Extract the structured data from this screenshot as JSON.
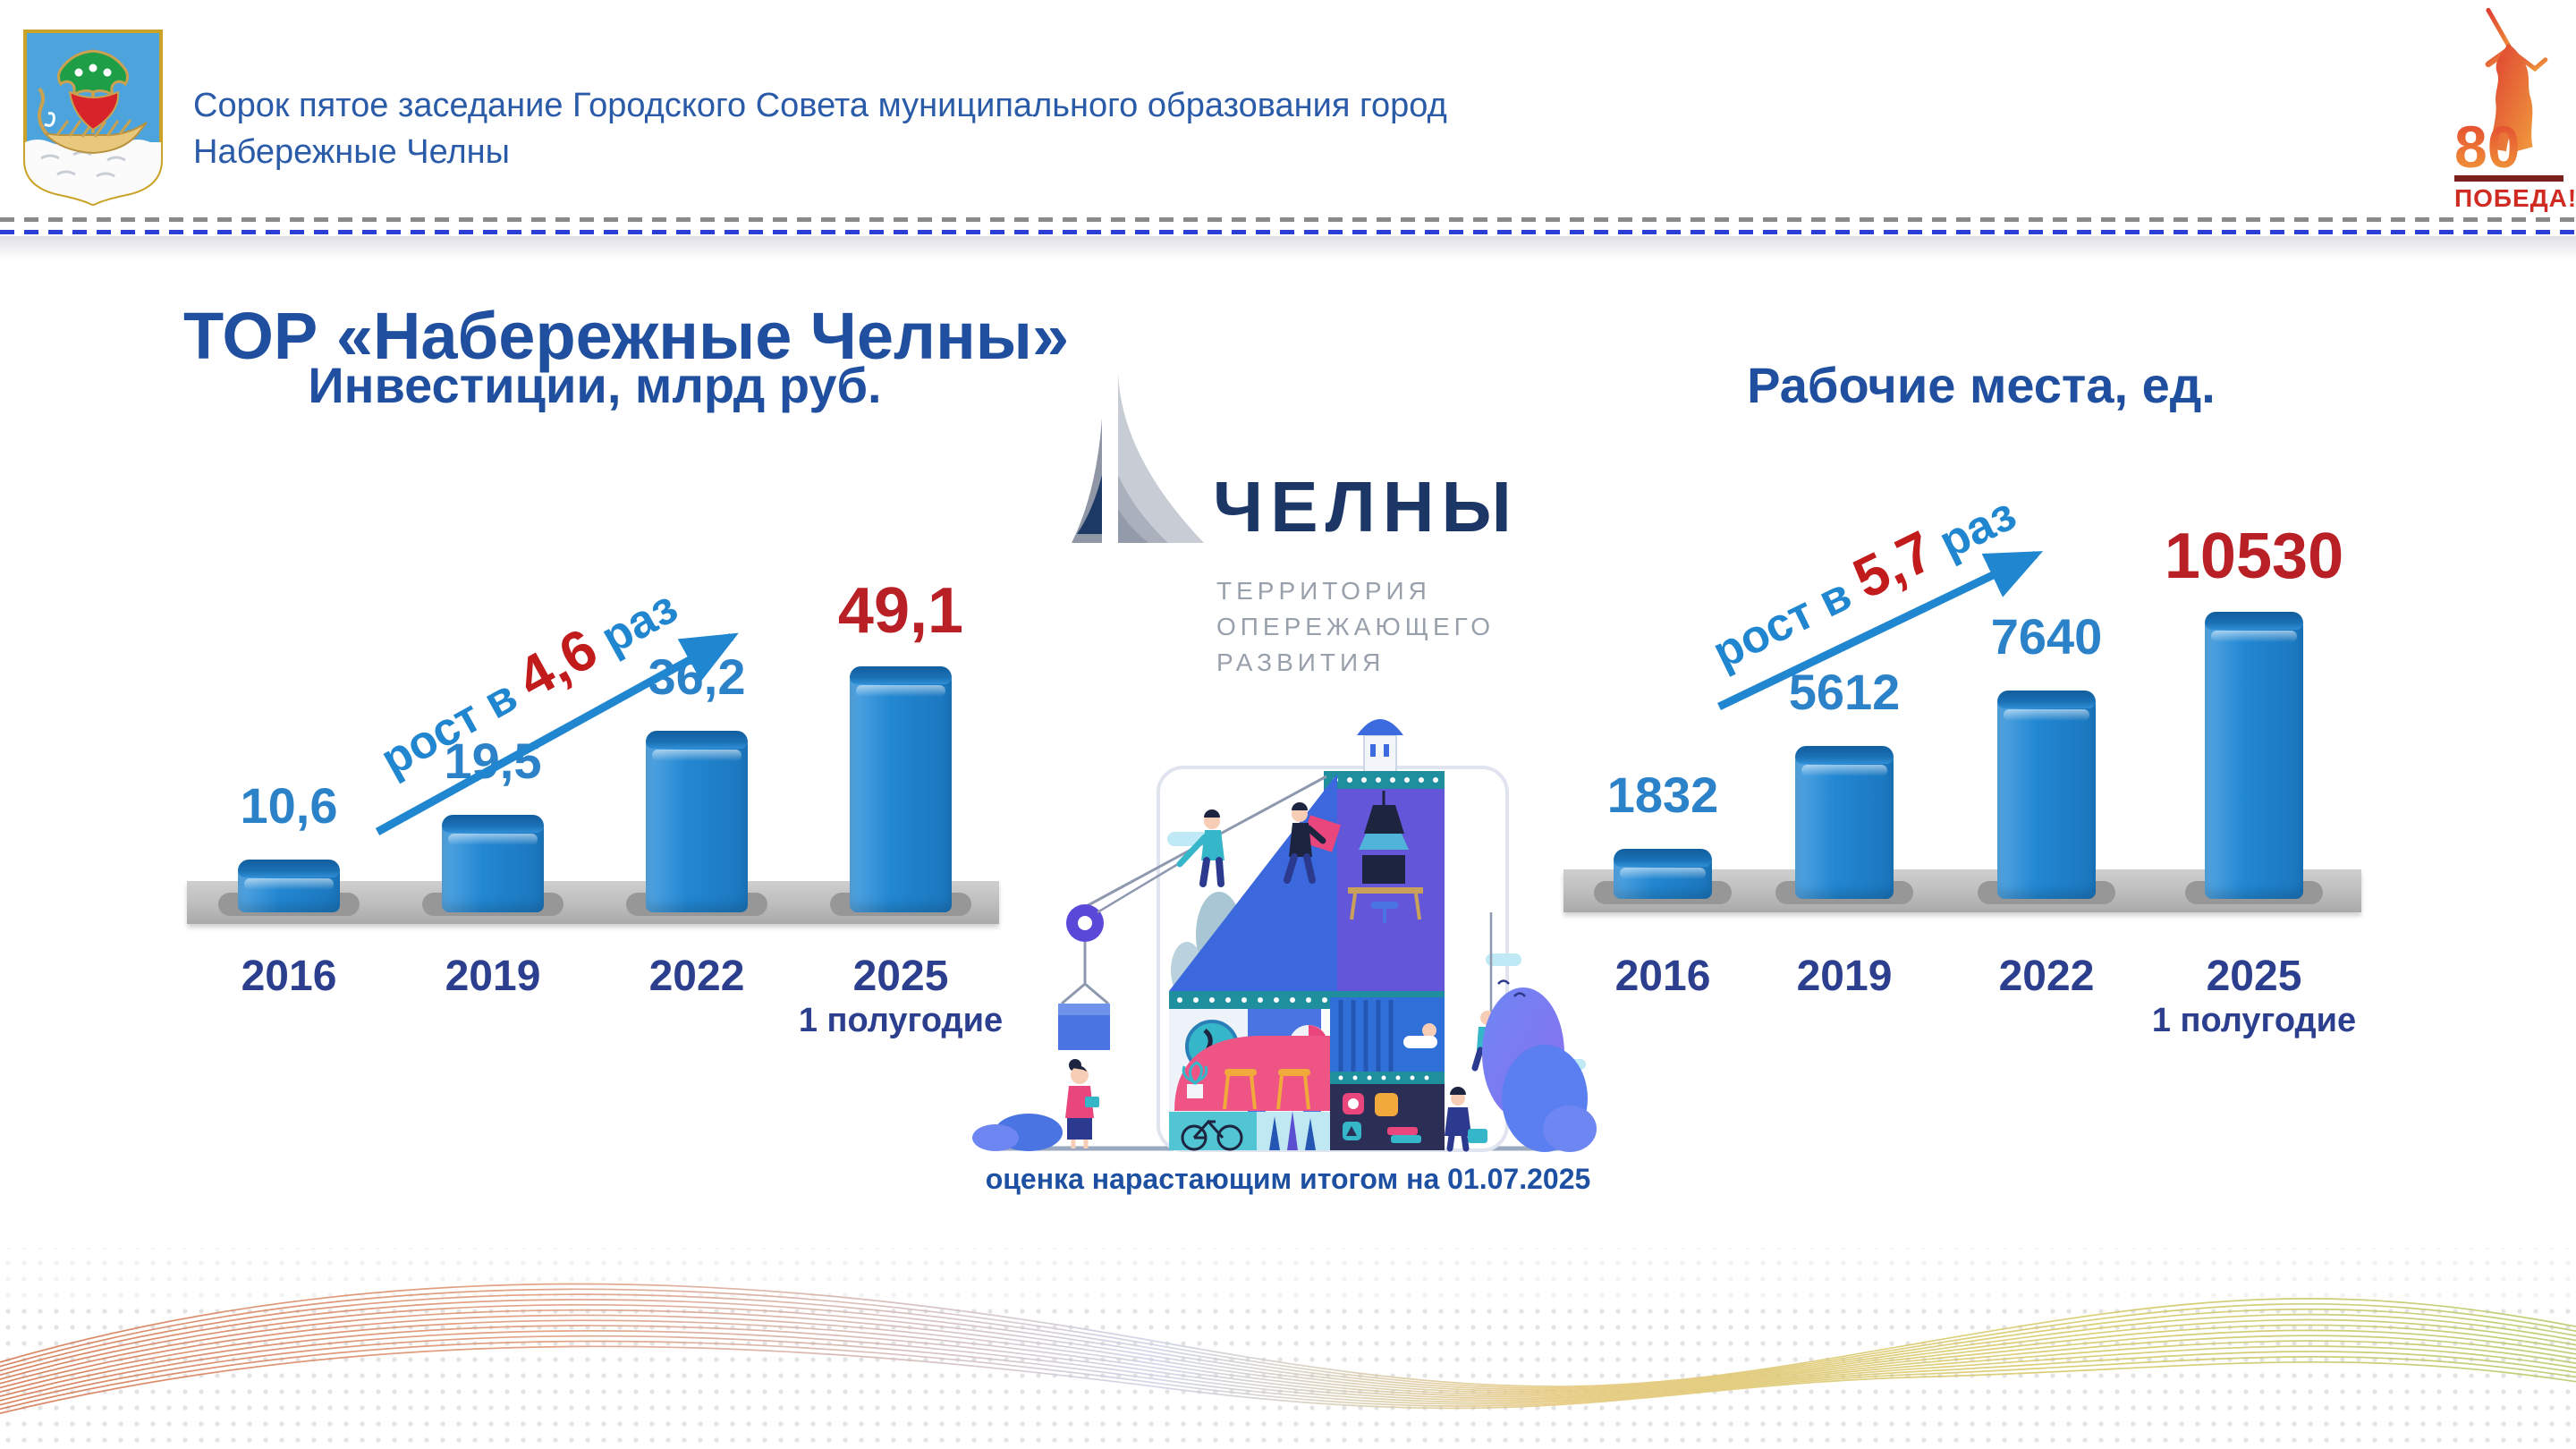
{
  "header": {
    "title_line1": "Сорок пятое заседание Городского Совета муниципального образования город",
    "title_line2": "Набережные Челны",
    "victory": {
      "number": "80",
      "word": "ПОБЕДА!"
    }
  },
  "slide_title": "ТОР «Набережные Челны»",
  "brand": {
    "name": "ЧЕЛНЫ",
    "subtitle_lines": [
      "ТЕРРИТОРИЯ",
      "ОПЕРЕЖАЮЩЕГО",
      "РАЗВИТИЯ"
    ]
  },
  "caption": "оценка нарастающим итогом на 01.07.2025",
  "chart_data": [
    {
      "type": "bar",
      "title": "Инвестиции, млрд руб.",
      "categories": [
        "2016",
        "2019",
        "2022",
        "2025"
      ],
      "last_category_sub": "1 полугодие",
      "values": [
        10.6,
        19.5,
        36.2,
        49.1
      ],
      "value_labels": [
        "10,6",
        "19,5",
        "36,2",
        "49,1"
      ],
      "growth": {
        "prefix": "рост в ",
        "value": "4,6",
        "suffix": " раз"
      },
      "highlight_last": true,
      "xlabel": "",
      "ylabel": "",
      "ylim": [
        0,
        55
      ],
      "legend": "none",
      "grid": false
    },
    {
      "type": "bar",
      "title": "Рабочие места, ед.",
      "categories": [
        "2016",
        "2019",
        "2022",
        "2025"
      ],
      "last_category_sub": "1 полугодие",
      "values": [
        1832,
        5612,
        7640,
        10530
      ],
      "value_labels": [
        "1832",
        "5612",
        "7640",
        "10530"
      ],
      "growth": {
        "prefix": "рост в ",
        "value": "5,7",
        "suffix": " раз"
      },
      "highlight_last": true,
      "xlabel": "",
      "ylabel": "",
      "ylim": [
        0,
        11500
      ],
      "legend": "none",
      "grid": false
    }
  ],
  "colors": {
    "header_blue": "#2a5ba8",
    "title_navy": "#1f4f9e",
    "year_navy": "#2b3f8e",
    "value_blue": "#2b82c8",
    "value_red": "#b82025",
    "bar_blue": "#2287d2",
    "bar_cap": "#1a6fb4",
    "arrow_blue": "#1f86cf",
    "platform_gray": "#bcbcbc",
    "caption_blue": "#1d50a2",
    "brand_navy": "#1c3666",
    "brand_gray": "#98a0ac",
    "dashed_blue": "#2b3fd6",
    "dashed_gray": "#8a8a8a"
  }
}
